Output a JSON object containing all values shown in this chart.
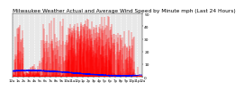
{
  "title": "Milwaukee Weather Actual and Average Wind Speed by Minute mph (Last 24 Hours)",
  "title_fontsize": 4.2,
  "bg_color": "#ffffff",
  "plot_bg_color": "#e8e8e8",
  "actual_color": "#ff0000",
  "average_color": "#0000ff",
  "grid_color": "#ffffff",
  "n_points": 1440,
  "ylim": [
    0,
    50
  ],
  "yticks": [
    0,
    10,
    20,
    30,
    40,
    50
  ],
  "ylabel_fontsize": 3.2,
  "xlabel_fontsize": 2.8,
  "n_xticks": 25
}
